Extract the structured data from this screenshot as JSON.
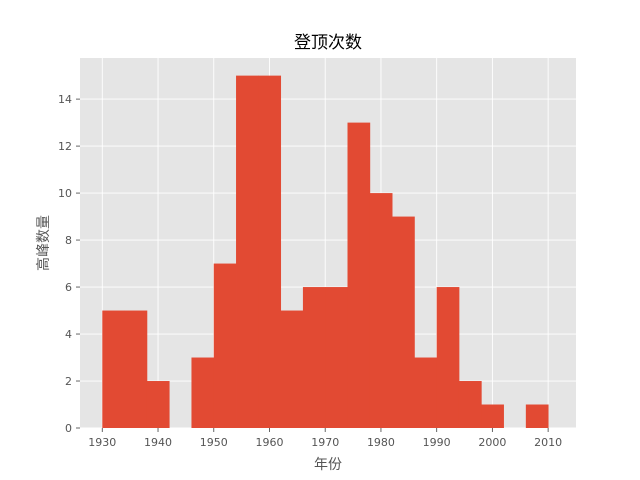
{
  "chart_data": {
    "type": "bar",
    "title": "登顶次数",
    "xlabel": "年份",
    "ylabel": "高峰数量",
    "xlim": [
      1926,
      2015
    ],
    "ylim": [
      0,
      15.75
    ],
    "xticks": [
      1930,
      1940,
      1950,
      1960,
      1970,
      1980,
      1990,
      2000,
      2010
    ],
    "yticks": [
      0,
      2,
      4,
      6,
      8,
      10,
      12,
      14
    ],
    "grid": true,
    "bin_edges": [
      1930,
      1934,
      1938,
      1942,
      1946,
      1950,
      1954,
      1958,
      1962,
      1966,
      1970,
      1974,
      1978,
      1982,
      1986,
      1990,
      1994,
      1998,
      2002,
      2006,
      2010
    ],
    "values": [
      5,
      5,
      2,
      0,
      3,
      7,
      15,
      15,
      5,
      6,
      6,
      13,
      10,
      9,
      3,
      6,
      2,
      1,
      0,
      1
    ],
    "bar_color": "#e24a33",
    "background_color": "#e5e5e5"
  }
}
